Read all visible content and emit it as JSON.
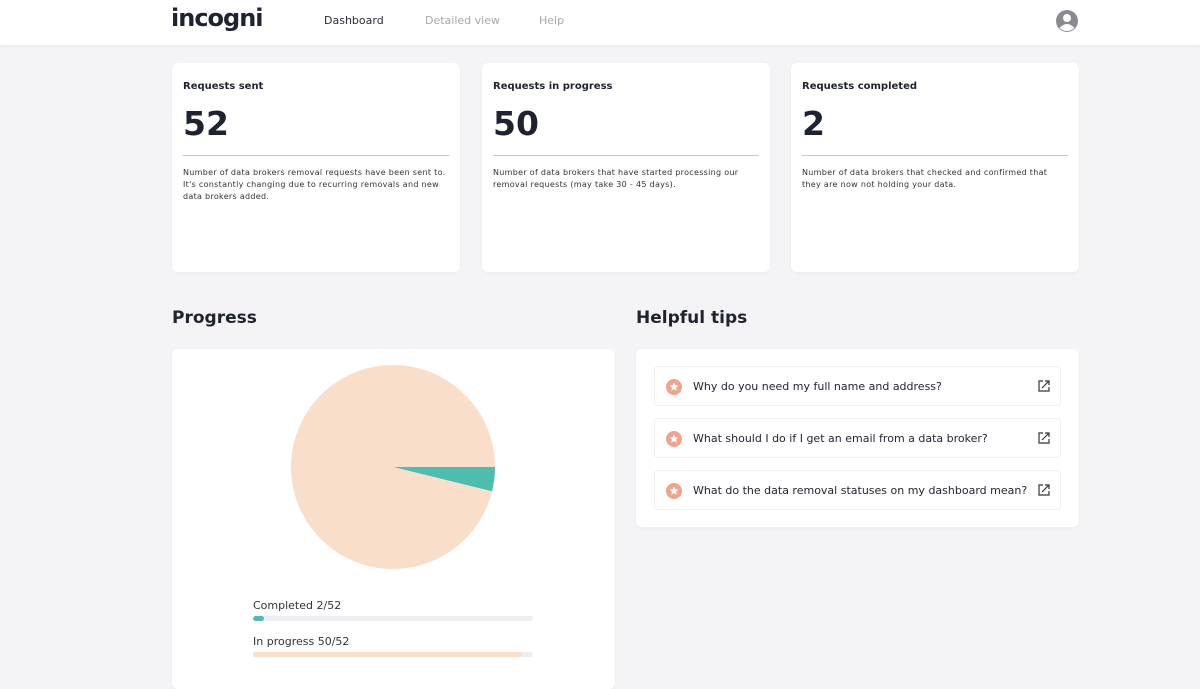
{
  "header": {
    "logo": "incogni",
    "nav": [
      "Dashboard",
      "Detailed view",
      "Help"
    ]
  },
  "stats": [
    {
      "title": "Requests sent",
      "value": 52,
      "description": "Number of data brokers removal requests have been sent to. It's constantly changing due to recurring removals and new data brokers added."
    },
    {
      "title": "Requests in progress",
      "value": 50,
      "description": "Number of data brokers that have started processing our removal requests (may take 30 - 45 days)."
    },
    {
      "title": "Requests completed",
      "value": 2,
      "description": "Number of data brokers that checked and confirmed that they are now not holding your data."
    }
  ],
  "progress": {
    "title": "Progress"
  },
  "chart_data": {
    "type": "pie",
    "values": [
      2,
      50
    ],
    "colors": [
      "#4dbdb0",
      "#f9dfca"
    ],
    "bars": [
      {
        "label": "Completed 2/52",
        "value": 2,
        "total": 52
      },
      {
        "label": "In progress 50/52",
        "value": 50,
        "total": 52
      }
    ]
  },
  "tips": {
    "title": "Helpful tips",
    "items": [
      "Why do you need my full name and address?",
      "What should I do if I get an email from a data broker?",
      "What do the data removal statuses on my dashboard mean?"
    ]
  }
}
